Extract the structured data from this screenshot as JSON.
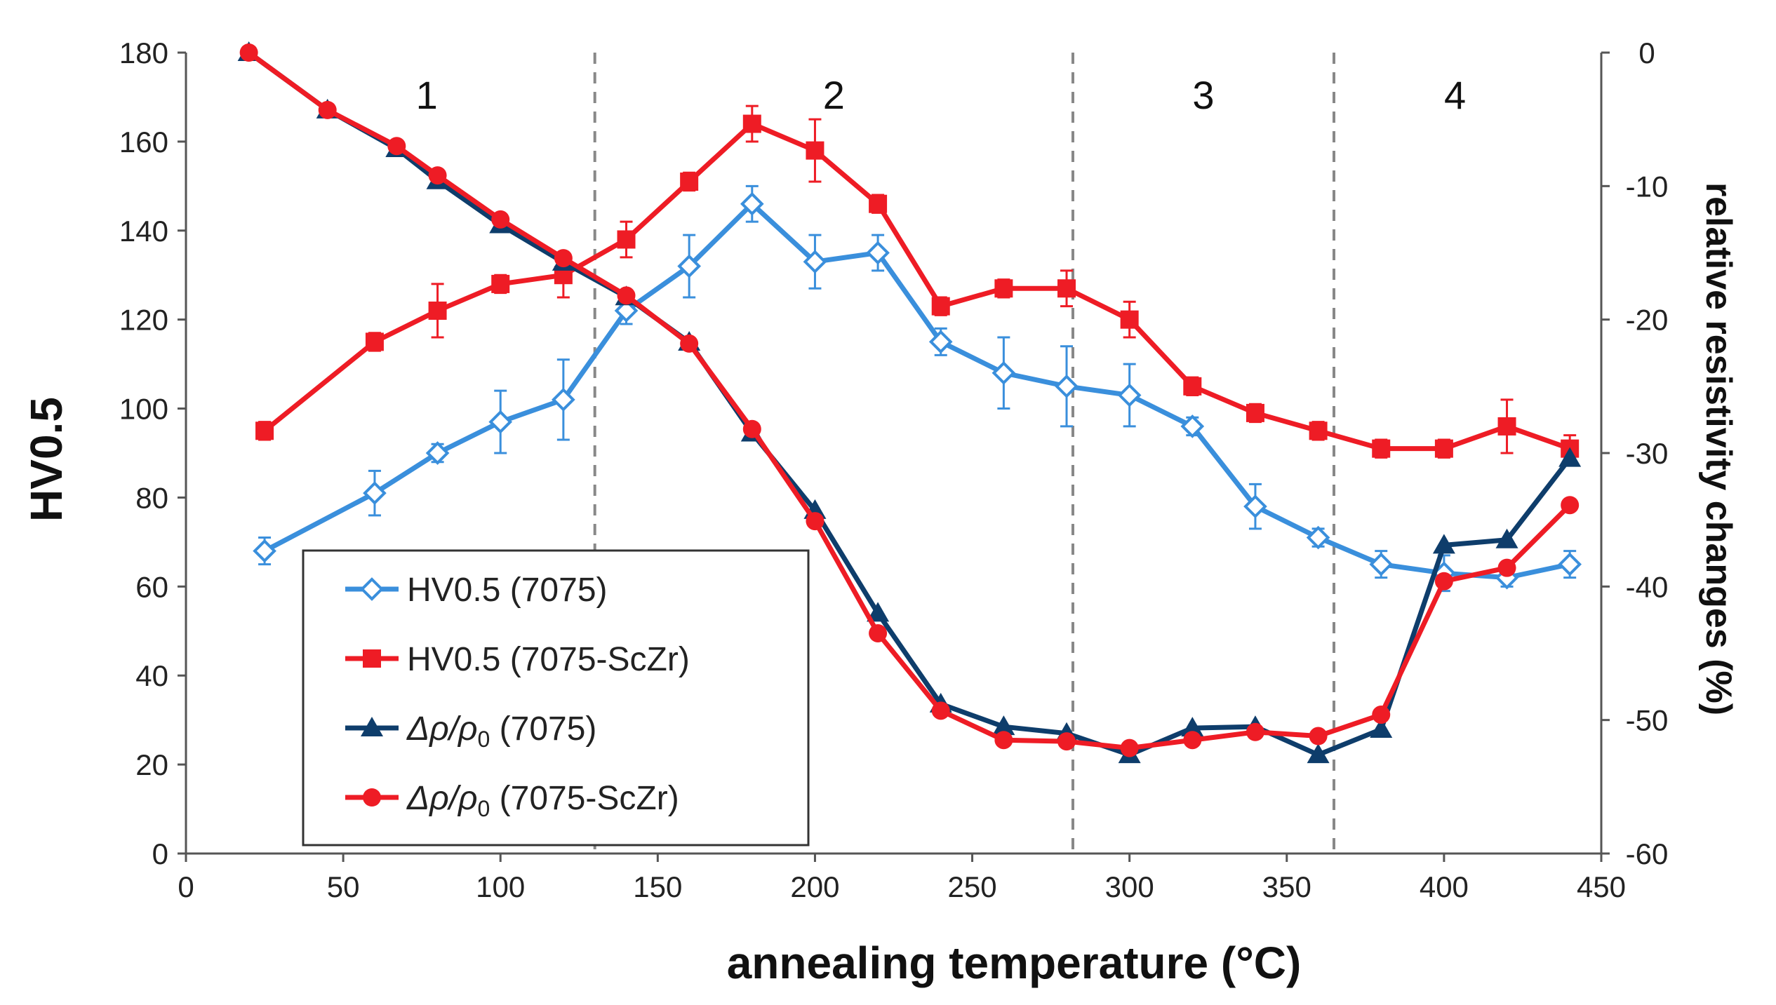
{
  "chart_data": {
    "type": "line",
    "xlabel": "annealing temperature (°C)",
    "ylabel": "HV0.5",
    "y2label": "relative resistivity changes (%)",
    "xlim": [
      0,
      450
    ],
    "ylim": [
      0,
      180
    ],
    "y2lim": [
      -60,
      0
    ],
    "xticks": [
      "0",
      "50",
      "100",
      "150",
      "200",
      "250",
      "300",
      "350",
      "400",
      "450"
    ],
    "yticks": [
      "0",
      "20",
      "40",
      "60",
      "80",
      "100",
      "120",
      "140",
      "160",
      "180"
    ],
    "y2ticks": [
      "0",
      "-10",
      "-20",
      "-30",
      "-40",
      "-50",
      "-60"
    ],
    "grid": false,
    "legend_position": "lower-left",
    "regions": [
      {
        "label": "1",
        "x_end": 130
      },
      {
        "label": "2",
        "x_end": 282
      },
      {
        "label": "3",
        "x_end": 365
      },
      {
        "label": "4"
      }
    ],
    "series": [
      {
        "name": "HV0.5 (7075)",
        "axis": "left",
        "color": "#3a8fdc",
        "marker": "open-diamond",
        "x": [
          25,
          60,
          80,
          100,
          120,
          140,
          160,
          180,
          200,
          220,
          240,
          260,
          280,
          300,
          320,
          340,
          360,
          380,
          400,
          420,
          440
        ],
        "y": [
          68,
          81,
          90,
          97,
          102,
          122,
          132,
          146,
          133,
          135,
          115,
          108,
          105,
          103,
          96,
          78,
          71,
          65,
          63,
          62,
          65
        ],
        "err": [
          3,
          5,
          2,
          7,
          9,
          3,
          7,
          4,
          6,
          4,
          3,
          8,
          9,
          7,
          2,
          5,
          2,
          3,
          4,
          2,
          3
        ]
      },
      {
        "name": "HV0.5 (7075-ScZr)",
        "axis": "left",
        "color": "#ee1c25",
        "marker": "square",
        "x": [
          25,
          60,
          80,
          100,
          120,
          140,
          160,
          180,
          200,
          220,
          240,
          260,
          280,
          300,
          320,
          340,
          360,
          380,
          400,
          420,
          440
        ],
        "y": [
          95,
          115,
          122,
          128,
          130,
          138,
          151,
          164,
          158,
          146,
          123,
          127,
          127,
          120,
          105,
          99,
          95,
          91,
          91,
          96,
          91
        ],
        "err": [
          2,
          2,
          6,
          2,
          5,
          4,
          2,
          4,
          7,
          2,
          2,
          2,
          4,
          4,
          2,
          2,
          2,
          2,
          2,
          6,
          3
        ]
      },
      {
        "name": "Δρ/ρ0 (7075)",
        "label_main": "Δρ/ρ",
        "label_sub": "0",
        "label_tail": " (7075)",
        "axis": "right",
        "color": "#0e3d6b",
        "marker": "triangle",
        "x": [
          20,
          45,
          67,
          80,
          100,
          120,
          140,
          160,
          180,
          200,
          220,
          240,
          260,
          280,
          300,
          320,
          340,
          360,
          380,
          400,
          420,
          440
        ],
        "y": [
          0,
          -4.3,
          -7.2,
          -9.6,
          -12.9,
          -15.7,
          -18.3,
          -21.7,
          -28.5,
          -34.3,
          -42.0,
          -48.8,
          -50.5,
          -51.0,
          -52.6,
          -50.6,
          -50.5,
          -52.6,
          -50.7,
          -36.9,
          -36.5,
          -30.4
        ]
      },
      {
        "name": "Δρ/ρ0 (7075-ScZr)",
        "label_main": "Δρ/ρ",
        "label_sub": "0",
        "label_tail": " (7075-ScZr)",
        "axis": "right",
        "color": "#ee1c25",
        "marker": "circle",
        "x": [
          20,
          45,
          67,
          80,
          100,
          120,
          140,
          160,
          180,
          200,
          220,
          240,
          260,
          280,
          300,
          320,
          340,
          360,
          380,
          400,
          420,
          440
        ],
        "y": [
          0,
          -4.3,
          -7.0,
          -9.2,
          -12.5,
          -15.4,
          -18.2,
          -21.8,
          -28.2,
          -35.1,
          -43.5,
          -49.3,
          -51.5,
          -51.6,
          -52.1,
          -51.5,
          -50.9,
          -51.2,
          -49.6,
          -39.6,
          -38.6,
          -33.9
        ]
      }
    ]
  }
}
